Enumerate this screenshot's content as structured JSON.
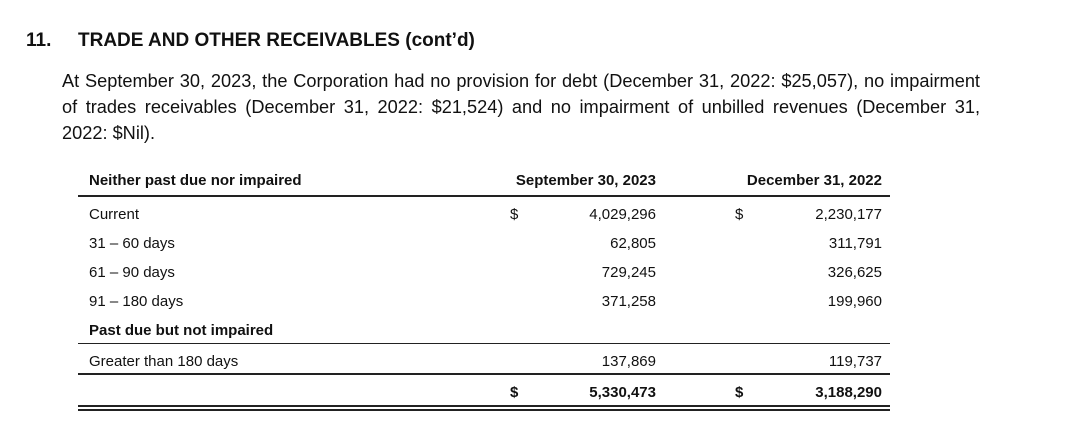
{
  "section": {
    "number": "11.",
    "title": "TRADE AND OTHER RECEIVABLES (cont’d)"
  },
  "paragraph": "At September 30, 2023, the Corporation had no provision for debt (December 31, 2022: $25,057), no impairment of trades receivables (December 31, 2022: $21,524) and no impairment of unbilled revenues (December 31, 2022: $Nil).",
  "table": {
    "header": {
      "label": "Neither past due nor impaired",
      "col1": "September 30, 2023",
      "col2": "December 31, 2022"
    },
    "currency": "$",
    "rows": [
      {
        "label": "Current",
        "v1": "4,029,296",
        "v2": "2,230,177"
      },
      {
        "label": "31 – 60 days",
        "v1": "62,805",
        "v2": "311,791"
      },
      {
        "label": "61 – 90 days",
        "v1": "729,245",
        "v2": "326,625"
      },
      {
        "label": "91 – 180 days",
        "v1": "371,258",
        "v2": "199,960"
      }
    ],
    "subheading": "Past due but not impaired",
    "past_due_row": {
      "label": "Greater than 180 days",
      "v1": "137,869",
      "v2": "119,737"
    },
    "total": {
      "v1": "5,330,473",
      "v2": "3,188,290"
    }
  }
}
